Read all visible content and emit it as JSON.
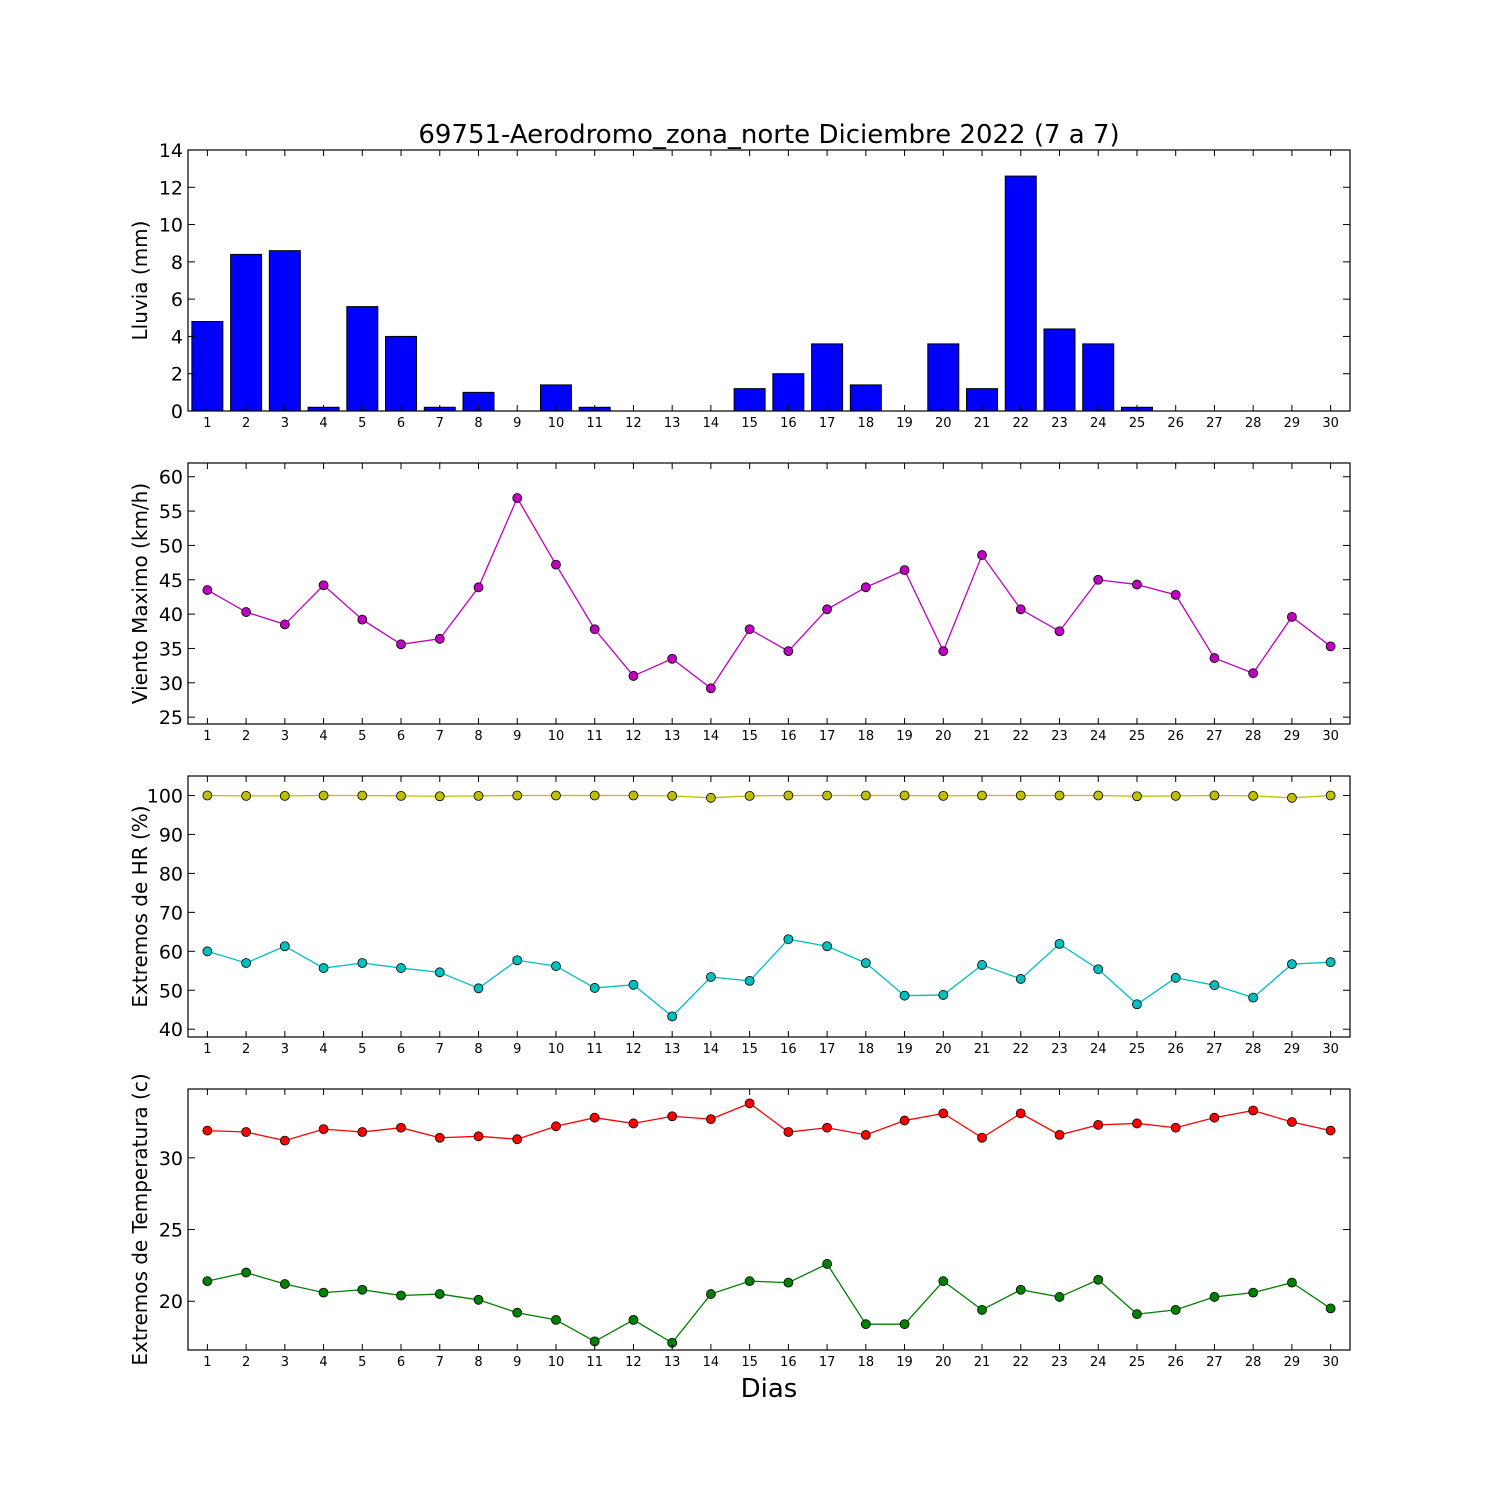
{
  "title": "69751-Aerodromo_zona_norte Diciembre 2022  (7 a 7)",
  "xlabel": "Dias",
  "chart_data": [
    {
      "type": "bar",
      "ylabel": "Lluvia (mm)",
      "x": [
        1,
        2,
        3,
        4,
        5,
        6,
        7,
        8,
        9,
        10,
        11,
        12,
        13,
        14,
        15,
        16,
        17,
        18,
        19,
        20,
        21,
        22,
        23,
        24,
        25,
        26,
        27,
        28,
        29,
        30
      ],
      "xlim": [
        0.5,
        30.5
      ],
      "ylim": [
        0,
        14
      ],
      "yticks": [
        0,
        2,
        4,
        6,
        8,
        10,
        12,
        14
      ],
      "grid": false,
      "series": [
        {
          "color": "#0000ff",
          "values": [
            4.8,
            8.4,
            8.6,
            0.2,
            5.6,
            4.0,
            0.2,
            1.0,
            0.0,
            1.4,
            0.2,
            0.0,
            0.0,
            0.0,
            1.2,
            2.0,
            3.6,
            1.4,
            0.0,
            3.6,
            1.2,
            12.6,
            4.4,
            3.6,
            0.2,
            0.0,
            0.0,
            0.0,
            0.0,
            0.0
          ]
        }
      ]
    },
    {
      "type": "line",
      "ylabel": "Viento Maximo (km/h)",
      "x": [
        1,
        2,
        3,
        4,
        5,
        6,
        7,
        8,
        9,
        10,
        11,
        12,
        13,
        14,
        15,
        16,
        17,
        18,
        19,
        20,
        21,
        22,
        23,
        24,
        25,
        26,
        27,
        28,
        29,
        30
      ],
      "xlim": [
        0.5,
        30.5
      ],
      "ylim": [
        24,
        62
      ],
      "yticks": [
        25,
        30,
        35,
        40,
        45,
        50,
        55,
        60
      ],
      "grid": false,
      "series": [
        {
          "color": "#bf00bf",
          "values": [
            43.5,
            40.3,
            38.5,
            44.2,
            39.2,
            35.6,
            36.4,
            43.9,
            56.9,
            47.2,
            37.8,
            31.0,
            33.5,
            29.2,
            37.8,
            34.6,
            40.7,
            43.9,
            46.4,
            34.6,
            48.6,
            40.7,
            37.5,
            45.0,
            44.3,
            42.8,
            33.6,
            31.4,
            39.6,
            35.3
          ]
        }
      ]
    },
    {
      "type": "line",
      "ylabel": "Extremos de HR (%)",
      "x": [
        1,
        2,
        3,
        4,
        5,
        6,
        7,
        8,
        9,
        10,
        11,
        12,
        13,
        14,
        15,
        16,
        17,
        18,
        19,
        20,
        21,
        22,
        23,
        24,
        25,
        26,
        27,
        28,
        29,
        30
      ],
      "xlim": [
        0.5,
        30.5
      ],
      "ylim": [
        38,
        105
      ],
      "yticks": [
        40,
        50,
        60,
        70,
        80,
        90,
        100
      ],
      "grid": false,
      "series": [
        {
          "color": "#bfbf00",
          "values": [
            100,
            99.9,
            99.9,
            100,
            100,
            99.9,
            99.8,
            99.9,
            100,
            100,
            100,
            100,
            99.9,
            99.4,
            99.9,
            100,
            100,
            100,
            100,
            99.9,
            100,
            100,
            100,
            100,
            99.8,
            99.9,
            100,
            99.9,
            99.4,
            100
          ]
        },
        {
          "color": "#00bfbf",
          "values": [
            60.0,
            57.0,
            61.3,
            55.7,
            57.0,
            55.7,
            54.6,
            50.5,
            57.7,
            56.2,
            50.6,
            51.4,
            43.3,
            53.4,
            52.4,
            63.1,
            61.3,
            57.0,
            48.6,
            48.8,
            56.5,
            52.9,
            61.9,
            55.4,
            46.4,
            53.2,
            51.3,
            48.1,
            56.7,
            57.2
          ]
        }
      ]
    },
    {
      "type": "line",
      "ylabel": "Extremos de Temperatura (c)",
      "x": [
        1,
        2,
        3,
        4,
        5,
        6,
        7,
        8,
        9,
        10,
        11,
        12,
        13,
        14,
        15,
        16,
        17,
        18,
        19,
        20,
        21,
        22,
        23,
        24,
        25,
        26,
        27,
        28,
        29,
        30
      ],
      "xlim": [
        0.5,
        30.5
      ],
      "ylim": [
        16.6,
        34.8
      ],
      "yticks": [
        20,
        25,
        30
      ],
      "grid": false,
      "series": [
        {
          "color": "#ff0000",
          "values": [
            31.9,
            31.8,
            31.2,
            32.0,
            31.8,
            32.1,
            31.4,
            31.5,
            31.3,
            32.2,
            32.8,
            32.4,
            32.9,
            32.7,
            33.8,
            31.8,
            32.1,
            31.6,
            32.6,
            33.1,
            31.4,
            33.1,
            31.6,
            32.3,
            32.4,
            32.1,
            32.8,
            33.3,
            32.5,
            31.9
          ]
        },
        {
          "color": "#008000",
          "values": [
            21.4,
            22.0,
            21.2,
            20.6,
            20.8,
            20.4,
            20.5,
            20.1,
            19.2,
            18.7,
            17.2,
            18.7,
            17.1,
            20.5,
            21.4,
            21.3,
            22.6,
            18.4,
            18.4,
            21.4,
            19.4,
            20.8,
            20.3,
            21.5,
            19.1,
            19.4,
            20.3,
            20.6,
            21.3,
            19.5
          ]
        }
      ]
    }
  ]
}
